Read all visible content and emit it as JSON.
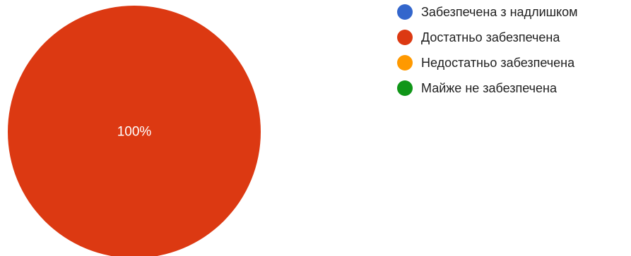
{
  "chart_data": {
    "type": "pie",
    "categories": [
      "Забезпечена з надлишком",
      "Достатньо забезпечена",
      "Недостатньо забезпечена",
      "Майже не забезпечена"
    ],
    "values": [
      0,
      100,
      0,
      0
    ],
    "slice_labels": [
      "",
      "100%",
      "",
      ""
    ],
    "colors": [
      "#3366cc",
      "#dc3912",
      "#ff9900",
      "#109618"
    ],
    "legend_position": "right"
  }
}
